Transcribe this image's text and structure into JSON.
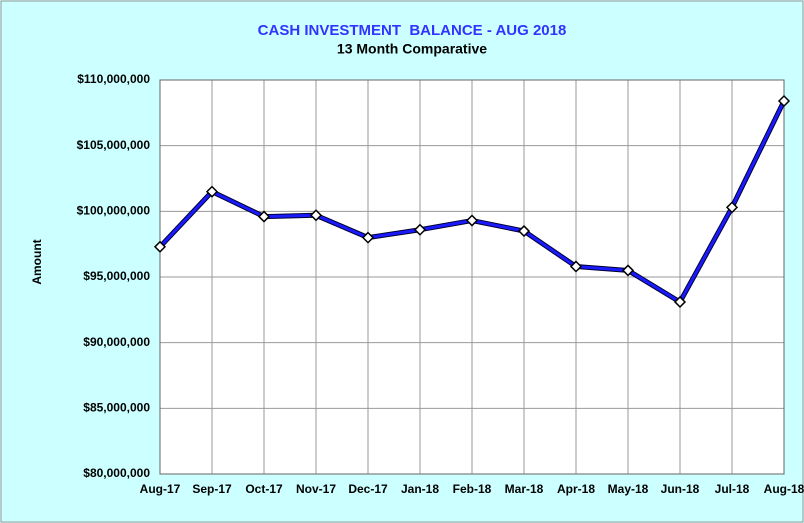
{
  "chart_data": {
    "type": "line",
    "title": "CASH INVESTMENT  BALANCE - AUG 2018",
    "subtitle": "13 Month Comparative",
    "y_label": "Amount",
    "categories": [
      "Aug-17",
      "Sep-17",
      "Oct-17",
      "Nov-17",
      "Dec-17",
      "Jan-18",
      "Feb-18",
      "Mar-18",
      "Apr-18",
      "May-18",
      "Jun-18",
      "Jul-18",
      "Aug-18"
    ],
    "series": [
      {
        "name": "Amount",
        "color": "#1a1aff",
        "values": [
          97300000,
          101500000,
          99600000,
          99700000,
          98000000,
          98600000,
          99300000,
          98500000,
          95800000,
          95500000,
          93100000,
          100300000,
          108400000
        ]
      }
    ],
    "ylim": [
      80000000,
      110000000
    ],
    "yticks": [
      {
        "value": 80000000,
        "label": "$80,000,000"
      },
      {
        "value": 85000000,
        "label": "$85,000,000"
      },
      {
        "value": 90000000,
        "label": "$90,000,000"
      },
      {
        "value": 95000000,
        "label": "$95,000,000"
      },
      {
        "value": 100000000,
        "label": "$100,000,000"
      },
      {
        "value": 105000000,
        "label": "$105,000,000"
      },
      {
        "value": 110000000,
        "label": "$110,000,000"
      }
    ],
    "grid": true
  }
}
